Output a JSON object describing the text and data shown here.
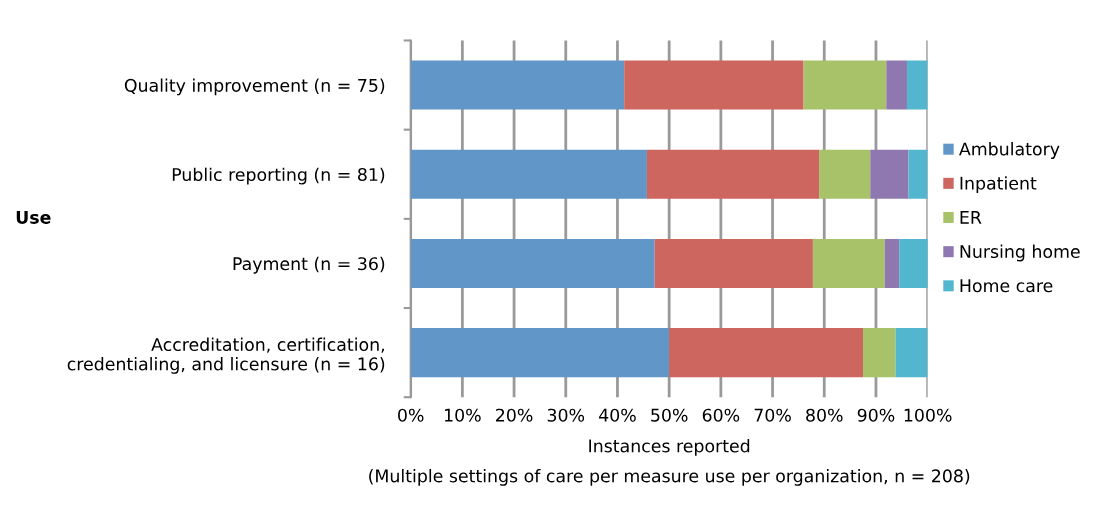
{
  "chart_data": {
    "type": "bar",
    "orientation": "horizontal",
    "stacked": true,
    "categories": [
      "Quality improvement (n = 75)",
      "Public reporting (n = 81)",
      "Payment (n = 36)",
      "Accreditation, certification,\ncredentialing, and licensure (n = 16)"
    ],
    "series": [
      {
        "name": "Ambulatory",
        "color": "#6196c9",
        "values": [
          41.3,
          45.7,
          47.2,
          50
        ]
      },
      {
        "name": "Inpatient",
        "color": "#cd665f",
        "values": [
          34.7,
          33.3,
          30.6,
          37.5
        ]
      },
      {
        "name": "ER",
        "color": "#a8c26a",
        "values": [
          16,
          9.9,
          13.9,
          6.3
        ]
      },
      {
        "name": "Nursing home",
        "color": "#8f78b0",
        "values": [
          4,
          7.4,
          2.8,
          0
        ]
      },
      {
        "name": "Home care",
        "color": "#52b6cf",
        "values": [
          4,
          3.7,
          5.6,
          6.2
        ]
      }
    ],
    "xlim": [
      0,
      100
    ],
    "xticks": [
      {
        "value": 0,
        "label": "0%"
      },
      {
        "value": 10,
        "label": "10%"
      },
      {
        "value": 20,
        "label": "20%"
      },
      {
        "value": 30,
        "label": "30%"
      },
      {
        "value": 40,
        "label": "40%"
      },
      {
        "value": 50,
        "label": "50%"
      },
      {
        "value": 60,
        "label": "60%"
      },
      {
        "value": 70,
        "label": "70%"
      },
      {
        "value": 80,
        "label": "80%"
      },
      {
        "value": 90,
        "label": "90%"
      },
      {
        "value": 100,
        "label": "100%"
      }
    ],
    "xlabel": "Instances reported\n(Multiple settings of care per measure use per organization, n = 208)",
    "ylabel": "Use",
    "grid": "x",
    "legend": "right"
  }
}
